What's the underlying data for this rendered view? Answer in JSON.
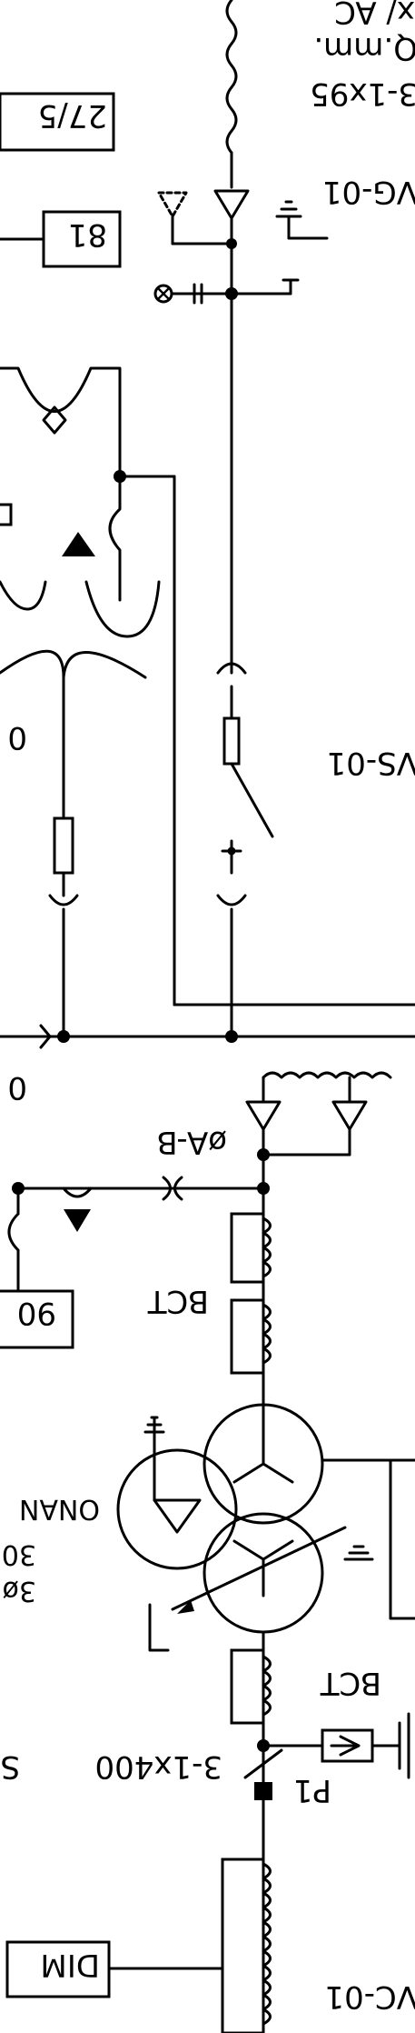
{
  "labels": {
    "cable_spec_top": "3-1x95",
    "qmm_top": "Q.mm.",
    "cable_top_partial": "x/ AC",
    "vg_top": "VG-01",
    "relay_27_59": "27/5",
    "relay_81": "81",
    "vs_mid": "VS-01",
    "label_mid_left": "0",
    "label_mid_left2": "0",
    "phase_ab": "øA-B",
    "bct_upper": "BCT",
    "relay_90": "90",
    "onan": "ONAN",
    "xfmr_line2": "30",
    "xfmr_line3": "3ø",
    "bct_lower": "BCT",
    "cable_spec_bottom": "3-1x400",
    "cable_bottom_partial": "S",
    "p1": "P1",
    "dim": "DIM",
    "vc_bottom": "VC-01"
  },
  "colors": {
    "ink": "#000000",
    "background": "#ffffff"
  }
}
